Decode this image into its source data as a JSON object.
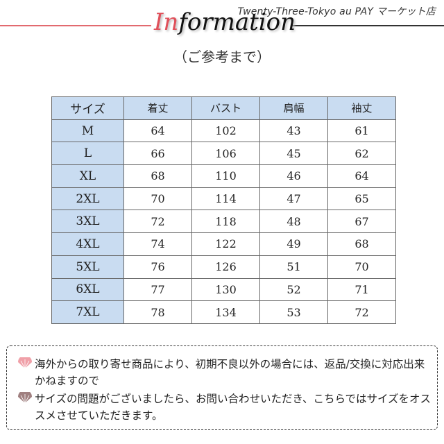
{
  "header": {
    "shop_name": "Twenty-Three-Tokyo au PAY マーケット店",
    "title_accent": "In",
    "title_rest": "formation",
    "subtitle": "（ご参考まで）"
  },
  "table": {
    "headers": [
      "サイズ",
      "着丈",
      "バスト",
      "肩幅",
      "袖丈"
    ],
    "rows": [
      [
        "M",
        "64",
        "102",
        "43",
        "61"
      ],
      [
        "L",
        "66",
        "106",
        "45",
        "62"
      ],
      [
        "XL",
        "68",
        "110",
        "46",
        "64"
      ],
      [
        "2XL",
        "70",
        "114",
        "47",
        "65"
      ],
      [
        "3XL",
        "72",
        "118",
        "48",
        "67"
      ],
      [
        "4XL",
        "74",
        "122",
        "49",
        "68"
      ],
      [
        "5XL",
        "76",
        "126",
        "51",
        "70"
      ],
      [
        "6XL",
        "77",
        "130",
        "52",
        "71"
      ],
      [
        "7XL",
        "78",
        "134",
        "53",
        "72"
      ]
    ]
  },
  "notes": [
    {
      "icon": "fan-icon",
      "color": "#f0a0a8",
      "text": "海外からの取り寄せ商品により、初期不良以外の場合には、返品/交換に対応出来かねますので"
    },
    {
      "icon": "fan-icon",
      "color": "#a08080",
      "text": "サイズの問題がございましたら、お問い合わせいただき、こちらではサイズをオススメさせていただきます。"
    }
  ],
  "colors": {
    "accent": "#e0505a",
    "header_bg": "#c9dcf1"
  }
}
